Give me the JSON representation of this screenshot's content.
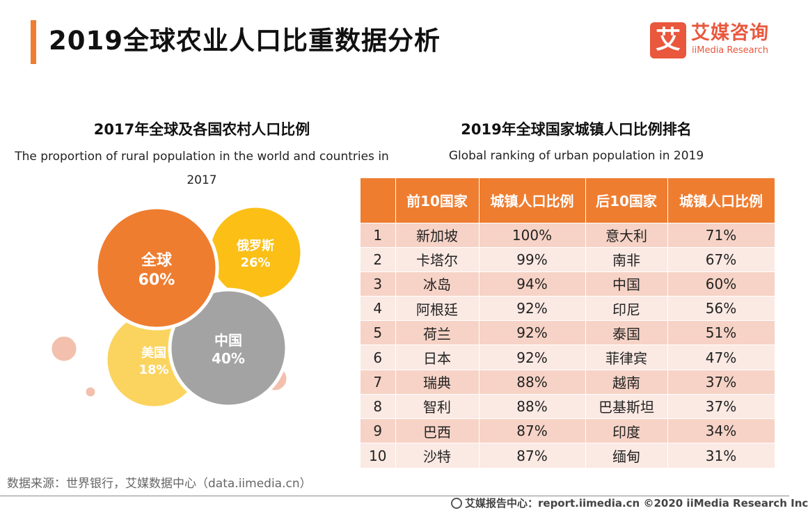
{
  "header": {
    "title": "2019全球农业人口比重数据分析",
    "logo": {
      "mark": "艾",
      "cn": "艾媒咨询",
      "en": "iiMedia Research"
    }
  },
  "left_panel": {
    "title_cn": "2017年全球及各国农村人口比例",
    "title_en": "The proportion of rural population in the world and countries in 2017"
  },
  "right_panel": {
    "title_cn": "2019年全球国家城镇人口比例排名",
    "title_en": "Global ranking of urban population in 2019"
  },
  "colors": {
    "accent": "#ee7d30",
    "orange": "#ee7d30",
    "yellow": "#fbbf16",
    "gray": "#a3a3a3",
    "light_yellow": "#fbd45f",
    "pink": "#f2c0ad",
    "row_dark": "#f6d3c6",
    "row_light": "#fbe9e3"
  },
  "chart_data": [
    {
      "type": "bubble",
      "title": "2017年全球及各国农村人口比例",
      "subtitle": "The proportion of rural population in the world and countries in 2017",
      "categories": [
        "全球",
        "俄罗斯",
        "中国",
        "美国"
      ],
      "values": [
        60,
        26,
        40,
        18
      ],
      "labels": [
        "60%",
        "26%",
        "40%",
        "18%"
      ],
      "unit": "%"
    },
    {
      "type": "table",
      "title": "2019年全球国家城镇人口比例排名",
      "subtitle": "Global ranking of urban population in 2019",
      "columns": [
        "",
        "前10国家",
        "城镇人口比例",
        "后10国家",
        "城镇人口比例"
      ],
      "rows": [
        [
          "1",
          "新加坡",
          "100%",
          "意大利",
          "71%"
        ],
        [
          "2",
          "卡塔尔",
          "99%",
          "南非",
          "67%"
        ],
        [
          "3",
          "冰岛",
          "94%",
          "中国",
          "60%"
        ],
        [
          "4",
          "阿根廷",
          "92%",
          "印尼",
          "56%"
        ],
        [
          "5",
          "荷兰",
          "92%",
          "泰国",
          "51%"
        ],
        [
          "6",
          "日本",
          "92%",
          "菲律宾",
          "47%"
        ],
        [
          "7",
          "瑞典",
          "88%",
          "越南",
          "37%"
        ],
        [
          "8",
          "智利",
          "88%",
          "巴基斯坦",
          "37%"
        ],
        [
          "9",
          "巴西",
          "87%",
          "印度",
          "34%"
        ],
        [
          "10",
          "沙特",
          "87%",
          "缅甸",
          "31%"
        ]
      ]
    }
  ],
  "footer": {
    "source": "数据来源：世界银行，艾媒数据中心（data.iimedia.cn）",
    "credit": "艾媒报告中心：report.iimedia.cn  ©2020  iiMedia Research  Inc"
  }
}
